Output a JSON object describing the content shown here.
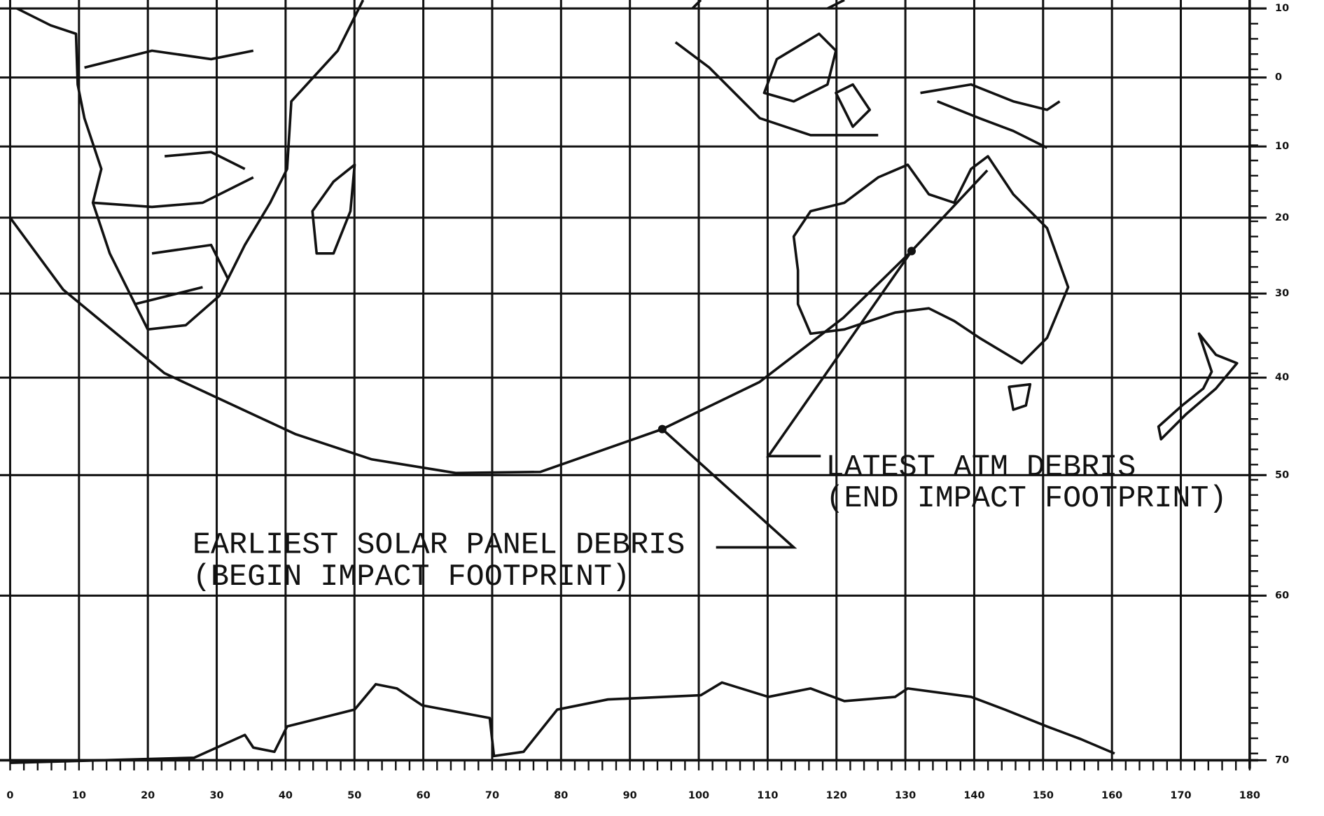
{
  "map": {
    "projection": "mercator",
    "xlim": [
      0,
      180
    ],
    "ylim": [
      -70,
      10
    ],
    "xticks": [
      0,
      10,
      20,
      30,
      40,
      50,
      60,
      70,
      80,
      90,
      100,
      110,
      120,
      130,
      140,
      150,
      160,
      170,
      180
    ],
    "yticks": [
      10,
      0,
      {
        "value": -10,
        "label": "10"
      },
      {
        "value": -20,
        "label": "20"
      },
      {
        "value": -30,
        "label": "30"
      },
      {
        "value": -40,
        "label": "40"
      },
      {
        "value": -50,
        "label": "50"
      },
      {
        "value": -60,
        "label": "60"
      },
      {
        "value": -70,
        "label": "70"
      }
    ],
    "grid": true,
    "ground_track": {
      "lon": [
        0,
        7.7,
        22.4,
        41.4,
        52.5,
        64.7,
        77,
        94.7,
        108.8,
        121,
        130.9,
        141.9
      ],
      "lat": [
        -20,
        -29.5,
        -39.5,
        -46,
        -48.5,
        -49.8,
        -49.7,
        -45.5,
        -40.5,
        -33,
        -24.5,
        -13.4
      ]
    },
    "footprint": {
      "begin": {
        "lon": 94.7,
        "lat": -45.5,
        "label": [
          "EARLIEST SOLAR PANEL DEBRIS",
          "(BEGIN IMPACT FOOTPRINT)"
        ]
      },
      "end": {
        "lon": 130.9,
        "lat": -24.5,
        "label": [
          "LATEST ATM DEBRIS",
          "(END IMPACT FOOTPRINT)"
        ]
      }
    }
  }
}
